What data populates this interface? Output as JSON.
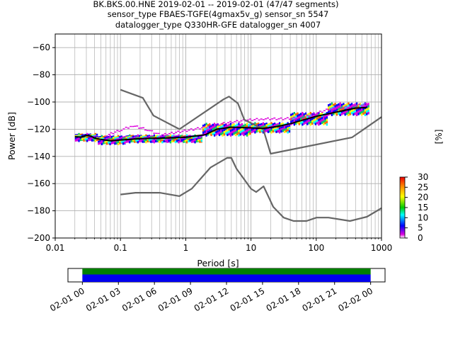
{
  "chart_data": [
    {
      "type": "heatmap",
      "title_lines": [
        "BK.BKS.00.HNE   2019-02-01 -- 2019-02-01  (47/47 segments)",
        "sensor_type FBAES-TGFE(4gmax5v_g) sensor_sn 5547",
        "datalogger_type Q330HR-GFE datalogger_sn 4007"
      ],
      "xlabel": "Period [s]",
      "ylabel": "Power [dB]",
      "x_scale": "log",
      "xlim": [
        0.01,
        1000
      ],
      "ylim": [
        -200,
        -50
      ],
      "x_tick_labels": [
        "0.01",
        "0.1",
        "1",
        "10",
        "100",
        "1000"
      ],
      "y_ticks": [
        -60,
        -80,
        -100,
        -120,
        -140,
        -160,
        -180,
        -200
      ],
      "grid": true,
      "colorbar": {
        "label": "[%]",
        "range": [
          0,
          30
        ],
        "ticks": [
          0,
          5,
          10,
          15,
          20,
          25,
          30
        ],
        "colormap": "pqlx"
      },
      "series": [
        {
          "role": "noise_model_high",
          "color": "#666666",
          "points": [
            [
              0.1,
              -91
            ],
            [
              0.22,
              -97
            ],
            [
              0.32,
              -110
            ],
            [
              0.8,
              -120
            ],
            [
              3.8,
              -98
            ],
            [
              4.6,
              -96
            ],
            [
              6.3,
              -101
            ],
            [
              7.9,
              -113
            ],
            [
              15.4,
              -120
            ],
            [
              20,
              -138
            ],
            [
              354.8,
              -126
            ],
            [
              1000,
              -111
            ]
          ]
        },
        {
          "role": "noise_model_low",
          "color": "#666666",
          "points": [
            [
              0.1,
              -168
            ],
            [
              0.17,
              -166.7
            ],
            [
              0.4,
              -166.7
            ],
            [
              0.8,
              -169.2
            ],
            [
              1.24,
              -163.7
            ],
            [
              2.4,
              -148.1
            ],
            [
              4.3,
              -141.1
            ],
            [
              5,
              -141.1
            ],
            [
              6,
              -149
            ],
            [
              10,
              -163.8
            ],
            [
              12,
              -166.2
            ],
            [
              15.6,
              -162
            ],
            [
              21.9,
              -177.1
            ],
            [
              31.6,
              -185
            ],
            [
              45,
              -187.5
            ],
            [
              70.8,
              -187.5
            ],
            [
              101,
              -185
            ],
            [
              154,
              -185
            ],
            [
              328,
              -187.5
            ],
            [
              600,
              -184.4
            ],
            [
              1000,
              -178
            ]
          ]
        },
        {
          "role": "mode",
          "color": "#000000",
          "points": [
            [
              0.02,
              -125.5
            ],
            [
              0.025,
              -125.8
            ],
            [
              0.03,
              -124.5
            ],
            [
              0.035,
              -125
            ],
            [
              0.04,
              -126.5
            ],
            [
              0.05,
              -127.5
            ],
            [
              0.07,
              -128.5
            ],
            [
              0.1,
              -128
            ],
            [
              0.2,
              -127
            ],
            [
              0.5,
              -126.5
            ],
            [
              1,
              -126
            ],
            [
              2,
              -124
            ],
            [
              3,
              -120
            ],
            [
              5,
              -118.5
            ],
            [
              10,
              -119
            ],
            [
              15,
              -119.5
            ],
            [
              25,
              -118
            ],
            [
              40,
              -116
            ],
            [
              60,
              -113.5
            ],
            [
              100,
              -110.5
            ],
            [
              200,
              -107.5
            ],
            [
              400,
              -104.5
            ],
            [
              600,
              -104
            ]
          ]
        }
      ],
      "heat_bands": [
        {
          "x": [
            0.02,
            0.045
          ],
          "y_center": -125.5,
          "half_width": 2
        },
        {
          "x": [
            0.045,
            0.12
          ],
          "y_center": -127.5,
          "half_width": 2.5
        },
        {
          "x": [
            0.12,
            1.8
          ],
          "y_center": -126.5,
          "half_width": 2
        },
        {
          "x": [
            1.8,
            10
          ],
          "y_center": -120,
          "half_width": 4
        },
        {
          "x": [
            10,
            40
          ],
          "y_center": -118.5,
          "half_width": 3
        },
        {
          "x": [
            40,
            150
          ],
          "y_center": -112,
          "half_width": 4
        },
        {
          "x": [
            150,
            650
          ],
          "y_center": -105,
          "half_width": 4
        }
      ],
      "outlier_band": {
        "color": "#dd00dd",
        "points": [
          [
            0.06,
            -124
          ],
          [
            0.1,
            -120
          ],
          [
            0.15,
            -117
          ],
          [
            0.25,
            -120
          ],
          [
            0.4,
            -124
          ],
          [
            2,
            -118
          ],
          [
            4,
            -115
          ],
          [
            8,
            -113
          ],
          [
            15,
            -112
          ],
          [
            30,
            -112
          ],
          [
            60,
            -111
          ],
          [
            150,
            -105
          ],
          [
            600,
            -101
          ]
        ]
      }
    },
    {
      "type": "timeline",
      "x_tick_labels": [
        "02-01 00",
        "02-01 03",
        "02-01 06",
        "02-01 09",
        "02-01 12",
        "02-01 15",
        "02-01 18",
        "02-01 21",
        "02-02 00"
      ],
      "xlim_hours": [
        -1.2,
        25.2
      ],
      "data_coverage_hours": [
        0,
        24
      ],
      "band_colors": [
        "#008000",
        "#0000ee"
      ]
    }
  ]
}
